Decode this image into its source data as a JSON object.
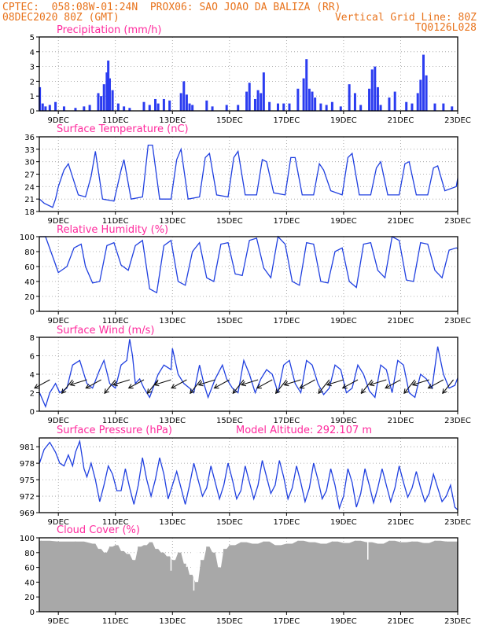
{
  "header": {
    "line1_left": "CPTEC:  058:08W-01:24N  PROX06: SAO JOAO DA BALIZA (RR)",
    "line2_left": "08DEC2020 80Z (GMT)",
    "line2_right": "Vertical Grid Line: 80Z",
    "line3_right": "TQ0126L028"
  },
  "colors": {
    "header": "#e8731c",
    "title": "#ff2a9d",
    "series": "#2040e0",
    "bar": "#2b3cf0",
    "cloud": "#a8a8a8",
    "grid": "#9a9a9a"
  },
  "xaxis": {
    "day_start": 8.333,
    "day_end": 23.0,
    "tick_labels": [
      "9DEC",
      "11DEC",
      "13DEC",
      "15DEC",
      "17DEC",
      "19DEC",
      "21DEC",
      "23DEC"
    ],
    "tick_days": [
      9,
      11,
      13,
      15,
      17,
      19,
      21,
      23
    ]
  },
  "chart_data": [
    {
      "type": "bar",
      "title": "Precipitation (mm/h)",
      "ylim": [
        0,
        5
      ],
      "yticks": [
        "0",
        "1",
        "2",
        "3",
        "4",
        "5"
      ],
      "x": [
        8.35,
        8.45,
        8.55,
        8.7,
        8.9,
        9.2,
        9.6,
        9.9,
        10.1,
        10.4,
        10.5,
        10.6,
        10.7,
        10.75,
        10.8,
        10.9,
        11.1,
        11.3,
        11.5,
        12.0,
        12.2,
        12.4,
        12.5,
        12.7,
        12.9,
        13.3,
        13.4,
        13.5,
        13.6,
        13.7,
        14.2,
        14.4,
        14.9,
        15.3,
        15.6,
        15.7,
        15.9,
        16.0,
        16.1,
        16.2,
        16.4,
        16.7,
        16.9,
        17.1,
        17.4,
        17.6,
        17.7,
        17.8,
        17.9,
        18.0,
        18.2,
        18.4,
        18.6,
        18.9,
        19.2,
        19.4,
        19.6,
        19.9,
        20.0,
        20.1,
        20.2,
        20.3,
        20.6,
        20.8,
        21.2,
        21.4,
        21.6,
        21.7,
        21.8,
        21.9,
        22.2,
        22.5,
        22.8
      ],
      "values": [
        1.6,
        0.5,
        0.3,
        0.4,
        0.6,
        0.3,
        0.2,
        0.3,
        0.4,
        1.2,
        1.0,
        1.8,
        2.6,
        3.4,
        2.2,
        1.4,
        0.5,
        0.3,
        0.2,
        0.6,
        0.4,
        0.8,
        0.5,
        0.8,
        0.7,
        1.2,
        2.0,
        1.1,
        0.5,
        0.4,
        0.7,
        0.3,
        0.4,
        0.4,
        1.3,
        1.9,
        0.8,
        1.4,
        1.2,
        2.6,
        0.6,
        0.5,
        0.5,
        0.5,
        1.5,
        2.2,
        3.5,
        1.5,
        1.3,
        0.9,
        0.5,
        0.4,
        0.6,
        0.3,
        1.8,
        1.2,
        0.4,
        1.5,
        2.8,
        3.0,
        1.6,
        0.4,
        0.9,
        1.3,
        0.6,
        0.5,
        1.2,
        2.1,
        3.8,
        2.4,
        0.5,
        0.5,
        0.3
      ]
    },
    {
      "type": "line",
      "title": "Surface Temperature (nC)",
      "ylim": [
        18,
        36
      ],
      "yticks": [
        "18",
        "21",
        "24",
        "27",
        "30",
        "33",
        "36"
      ],
      "x": [
        8.34,
        8.5,
        8.8,
        8.9,
        9.0,
        9.2,
        9.35,
        9.7,
        9.95,
        10.15,
        10.3,
        10.55,
        10.95,
        11.2,
        11.3,
        11.55,
        11.95,
        12.15,
        12.3,
        12.55,
        12.95,
        13.15,
        13.3,
        13.55,
        13.95,
        14.15,
        14.3,
        14.55,
        14.95,
        15.15,
        15.3,
        15.55,
        15.95,
        16.15,
        16.3,
        16.55,
        16.95,
        17.15,
        17.3,
        17.55,
        17.95,
        18.15,
        18.3,
        18.55,
        18.95,
        19.15,
        19.3,
        19.55,
        19.95,
        20.15,
        20.3,
        20.55,
        20.95,
        21.15,
        21.3,
        21.55,
        21.95,
        22.15,
        22.3,
        22.55,
        22.95,
        23.0
      ],
      "values": [
        21,
        20,
        19,
        21,
        24,
        28,
        29.5,
        22,
        21.5,
        26.5,
        32.5,
        21,
        20.5,
        28,
        30.5,
        21,
        21.5,
        34,
        34,
        21,
        21,
        30.5,
        33,
        21,
        21.5,
        31,
        32,
        22,
        21.5,
        31,
        32.5,
        22,
        22,
        30.5,
        30,
        22.5,
        22,
        31,
        31,
        22,
        22,
        29.5,
        28,
        23,
        22,
        31,
        32,
        22,
        22,
        28.5,
        30,
        22,
        22,
        29.5,
        30,
        22,
        22,
        28.5,
        29,
        23,
        24,
        26
      ]
    },
    {
      "type": "line",
      "title": "Relative Humidity (%)",
      "ylim": [
        0,
        100
      ],
      "yticks": [
        "0",
        "20",
        "40",
        "60",
        "80",
        "100"
      ],
      "x": [
        8.34,
        8.55,
        8.85,
        9.0,
        9.3,
        9.55,
        9.8,
        9.95,
        10.2,
        10.45,
        10.7,
        10.95,
        11.2,
        11.45,
        11.7,
        11.95,
        12.2,
        12.45,
        12.7,
        12.95,
        13.2,
        13.45,
        13.7,
        13.95,
        14.2,
        14.45,
        14.7,
        14.95,
        15.2,
        15.45,
        15.7,
        15.95,
        16.2,
        16.45,
        16.7,
        16.95,
        17.2,
        17.45,
        17.7,
        17.95,
        18.2,
        18.45,
        18.7,
        18.95,
        19.2,
        19.45,
        19.7,
        19.95,
        20.2,
        20.45,
        20.7,
        20.95,
        21.2,
        21.45,
        21.7,
        21.95,
        22.2,
        22.45,
        22.7,
        22.95,
        23.0
      ],
      "values": [
        100,
        100,
        68,
        52,
        60,
        85,
        90,
        60,
        38,
        40,
        88,
        92,
        62,
        55,
        88,
        95,
        30,
        25,
        88,
        95,
        40,
        35,
        80,
        92,
        45,
        40,
        90,
        92,
        50,
        48,
        95,
        98,
        58,
        45,
        100,
        90,
        40,
        35,
        92,
        90,
        40,
        38,
        80,
        85,
        40,
        32,
        90,
        92,
        55,
        45,
        100,
        95,
        42,
        40,
        92,
        90,
        55,
        45,
        82,
        85,
        84
      ]
    },
    {
      "type": "line",
      "title": "Surface Wind (m/s)",
      "ylim": [
        0,
        8
      ],
      "yticks": [
        "0",
        "2",
        "4",
        "6",
        "8"
      ],
      "x": [
        8.34,
        8.55,
        8.7,
        8.9,
        9.05,
        9.3,
        9.5,
        9.75,
        10.0,
        10.2,
        10.45,
        10.6,
        10.8,
        11.0,
        11.2,
        11.4,
        11.5,
        11.6,
        11.7,
        11.85,
        12.0,
        12.2,
        12.5,
        12.7,
        12.95,
        13.0,
        13.2,
        13.4,
        13.6,
        13.75,
        13.95,
        14.1,
        14.25,
        14.5,
        14.75,
        14.9,
        15.1,
        15.3,
        15.5,
        15.7,
        15.9,
        16.1,
        16.3,
        16.5,
        16.7,
        16.9,
        17.1,
        17.3,
        17.5,
        17.7,
        17.9,
        18.1,
        18.3,
        18.5,
        18.7,
        18.9,
        19.1,
        19.3,
        19.5,
        19.7,
        19.9,
        20.1,
        20.3,
        20.5,
        20.7,
        20.9,
        21.1,
        21.3,
        21.5,
        21.7,
        21.9,
        22.1,
        22.3,
        22.5,
        22.7,
        22.9,
        23.0
      ],
      "values": [
        2.0,
        0.5,
        2.0,
        3.0,
        2.0,
        2.5,
        5.0,
        5.5,
        3.0,
        2.5,
        4.5,
        5.5,
        3.0,
        2.5,
        5.0,
        5.5,
        7.8,
        6.0,
        3.0,
        3.5,
        2.5,
        1.5,
        4.0,
        5.0,
        4.5,
        6.8,
        4.0,
        3.0,
        2.5,
        2.0,
        5.0,
        3.0,
        1.5,
        3.5,
        5.0,
        3.5,
        2.5,
        2.0,
        5.5,
        4.0,
        2.0,
        3.5,
        4.5,
        4.0,
        2.0,
        5.0,
        5.5,
        3.0,
        2.0,
        5.5,
        5.0,
        3.0,
        1.8,
        2.5,
        5.0,
        4.5,
        2.0,
        2.5,
        5.0,
        4.0,
        2.2,
        1.5,
        5.0,
        4.5,
        2.0,
        5.5,
        5.0,
        2.0,
        1.5,
        4.0,
        3.5,
        2.5,
        7.0,
        4.0,
        2.5,
        2.8,
        3.6
      ]
    },
    {
      "type": "line",
      "title": "Surface Pressure (hPa)",
      "annotation": "Model Altitude: 292.107 m",
      "ylim": [
        969,
        982.6
      ],
      "yticks": [
        "969",
        "972",
        "975",
        "978",
        "981"
      ],
      "ytick_values": [
        969,
        972,
        975,
        978,
        981
      ],
      "x": [
        8.34,
        8.5,
        8.7,
        8.9,
        9.05,
        9.2,
        9.35,
        9.5,
        9.6,
        9.75,
        9.9,
        10.0,
        10.15,
        10.3,
        10.45,
        10.6,
        10.75,
        10.9,
        11.05,
        11.2,
        11.35,
        11.5,
        11.65,
        11.8,
        11.95,
        12.1,
        12.25,
        12.4,
        12.55,
        12.7,
        12.85,
        13.0,
        13.15,
        13.3,
        13.45,
        13.6,
        13.75,
        13.9,
        14.05,
        14.2,
        14.35,
        14.5,
        14.65,
        14.8,
        14.95,
        15.1,
        15.25,
        15.4,
        15.55,
        15.7,
        15.85,
        16.0,
        16.15,
        16.3,
        16.45,
        16.6,
        16.75,
        16.9,
        17.05,
        17.2,
        17.35,
        17.5,
        17.65,
        17.8,
        17.95,
        18.1,
        18.25,
        18.4,
        18.55,
        18.7,
        18.85,
        19.0,
        19.15,
        19.3,
        19.45,
        19.6,
        19.75,
        19.9,
        20.05,
        20.2,
        20.35,
        20.5,
        20.65,
        20.8,
        20.95,
        21.1,
        21.25,
        21.4,
        21.55,
        21.7,
        21.85,
        22.0,
        22.15,
        22.3,
        22.45,
        22.6,
        22.75,
        22.9,
        23.0
      ],
      "values": [
        978,
        980.5,
        981.8,
        980,
        978,
        977.5,
        979.5,
        977.5,
        980,
        982,
        977,
        975.5,
        978,
        975,
        971,
        974,
        977.5,
        976,
        973,
        973,
        977,
        973.5,
        970.5,
        974,
        979,
        975,
        972,
        975,
        979,
        976,
        971.5,
        974,
        976.5,
        973.5,
        970.5,
        974,
        978,
        975,
        972,
        973.5,
        977.5,
        974.5,
        971.5,
        974,
        978,
        975,
        971.5,
        973,
        977.5,
        974.5,
        971.5,
        974,
        978.5,
        975.5,
        972.5,
        974,
        978.5,
        975.5,
        971.5,
        973.5,
        977.5,
        974.5,
        971,
        973.5,
        978,
        975,
        971.5,
        973,
        977,
        974,
        969.8,
        972,
        977,
        974.5,
        970,
        972.5,
        977,
        974,
        970.8,
        973.5,
        977,
        974,
        971,
        973.5,
        977.5,
        974.5,
        971.8,
        973.5,
        976.5,
        973.5,
        971,
        972.5,
        976,
        973.5,
        971,
        972,
        974,
        970,
        969.5
      ]
    },
    {
      "type": "bar",
      "title": "Cloud Cover (%)",
      "ylim": [
        0,
        100
      ],
      "yticks": [
        "0",
        "20",
        "40",
        "60",
        "80",
        "100"
      ],
      "x": [
        8.4,
        9.0,
        9.6,
        10.2,
        10.4,
        10.6,
        10.8,
        11.0,
        11.2,
        11.4,
        11.6,
        11.8,
        12.0,
        12.2,
        12.4,
        12.6,
        12.8,
        13.0,
        13.2,
        13.4,
        13.6,
        13.8,
        14.0,
        14.2,
        14.4,
        14.6,
        14.8,
        15.0,
        15.4,
        15.8,
        16.2,
        16.6,
        17.0,
        17.4,
        17.8,
        18.2,
        18.6,
        19.0,
        19.4,
        19.8,
        20.2,
        20.6,
        21.0,
        21.4,
        21.8,
        22.2,
        22.6,
        23.0
      ],
      "values": [
        96,
        95,
        95,
        92,
        85,
        80,
        88,
        90,
        82,
        78,
        70,
        88,
        90,
        94,
        85,
        80,
        75,
        70,
        80,
        65,
        50,
        40,
        70,
        88,
        80,
        60,
        85,
        90,
        94,
        92,
        95,
        90,
        92,
        96,
        94,
        92,
        95,
        93,
        96,
        94,
        92,
        96,
        94,
        95,
        93,
        96,
        95,
        95
      ],
      "ink_dips": [
        [
          12.95,
          55
        ],
        [
          13.75,
          28
        ],
        [
          13.85,
          55
        ],
        [
          19.85,
          70
        ],
        [
          13.5,
          60
        ]
      ]
    }
  ]
}
